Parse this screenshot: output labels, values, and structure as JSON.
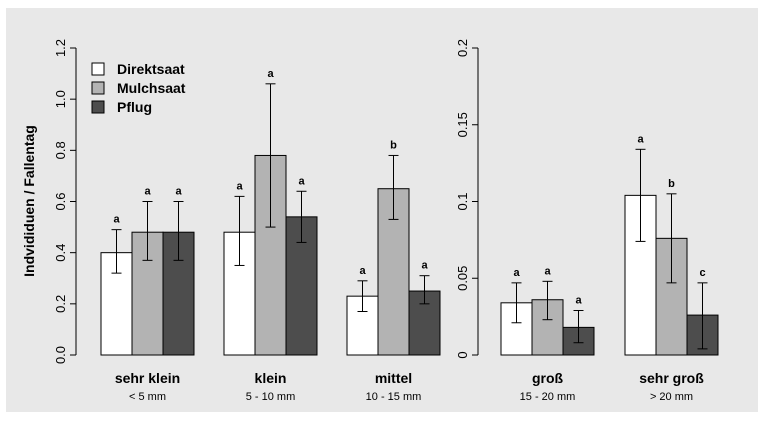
{
  "colors": {
    "panel_bg": "#e8e8e8",
    "Direktsaat": "#ffffff",
    "Mulchsaat": "#b3b3b3",
    "Pflug": "#4d4d4d",
    "axis": "#000000"
  },
  "chart_data": {
    "type": "bar",
    "ylabel": "Indvididuen / Fallentag",
    "legend": {
      "placement": "top-left",
      "entries": [
        "Direktsaat",
        "Mulchsaat",
        "Pflug"
      ]
    },
    "series": [
      {
        "name": "Direktsaat"
      },
      {
        "name": "Mulchsaat"
      },
      {
        "name": "Pflug"
      }
    ],
    "panels": [
      {
        "y_axis_side": "left",
        "ylim": [
          0,
          1.2
        ],
        "yticks": [
          0.0,
          0.2,
          0.4,
          0.6,
          0.8,
          1.0,
          1.2
        ],
        "ytick_labels": [
          "0.0",
          "0.2",
          "0.4",
          "0.6",
          "0.8",
          "1.0",
          "1.2"
        ],
        "groups": [
          {
            "category": "sehr klein",
            "sublabel": "< 5 mm",
            "bars": [
              {
                "value": 0.4,
                "err_low": 0.32,
                "err_high": 0.49,
                "letter": "a"
              },
              {
                "value": 0.48,
                "err_low": 0.37,
                "err_high": 0.6,
                "letter": "a"
              },
              {
                "value": 0.48,
                "err_low": 0.37,
                "err_high": 0.6,
                "letter": "a"
              }
            ]
          },
          {
            "category": "klein",
            "sublabel": "5 - 10 mm",
            "bars": [
              {
                "value": 0.48,
                "err_low": 0.35,
                "err_high": 0.62,
                "letter": "a"
              },
              {
                "value": 0.78,
                "err_low": 0.5,
                "err_high": 1.06,
                "letter": "a"
              },
              {
                "value": 0.54,
                "err_low": 0.44,
                "err_high": 0.64,
                "letter": "a"
              }
            ]
          },
          {
            "category": "mittel",
            "sublabel": "10 - 15 mm",
            "bars": [
              {
                "value": 0.23,
                "err_low": 0.17,
                "err_high": 0.29,
                "letter": "a"
              },
              {
                "value": 0.65,
                "err_low": 0.53,
                "err_high": 0.78,
                "letter": "b"
              },
              {
                "value": 0.25,
                "err_low": 0.2,
                "err_high": 0.31,
                "letter": "a"
              }
            ]
          }
        ]
      },
      {
        "y_axis_side": "left",
        "ylim": [
          0,
          0.2
        ],
        "yticks": [
          0,
          0.05,
          0.1,
          0.15,
          0.2
        ],
        "ytick_labels": [
          "0",
          "0.05",
          "0.1",
          "0.15",
          "0.2"
        ],
        "groups": [
          {
            "category": "groß",
            "sublabel": "15 - 20 mm",
            "bars": [
              {
                "value": 0.034,
                "err_low": 0.021,
                "err_high": 0.047,
                "letter": "a"
              },
              {
                "value": 0.036,
                "err_low": 0.023,
                "err_high": 0.048,
                "letter": "a"
              },
              {
                "value": 0.018,
                "err_low": 0.008,
                "err_high": 0.029,
                "letter": "a"
              }
            ]
          },
          {
            "category": "sehr groß",
            "sublabel": "> 20 mm",
            "bars": [
              {
                "value": 0.104,
                "err_low": 0.074,
                "err_high": 0.134,
                "letter": "a"
              },
              {
                "value": 0.076,
                "err_low": 0.047,
                "err_high": 0.105,
                "letter": "b"
              },
              {
                "value": 0.026,
                "err_low": 0.004,
                "err_high": 0.047,
                "letter": "c"
              }
            ]
          }
        ]
      }
    ]
  }
}
